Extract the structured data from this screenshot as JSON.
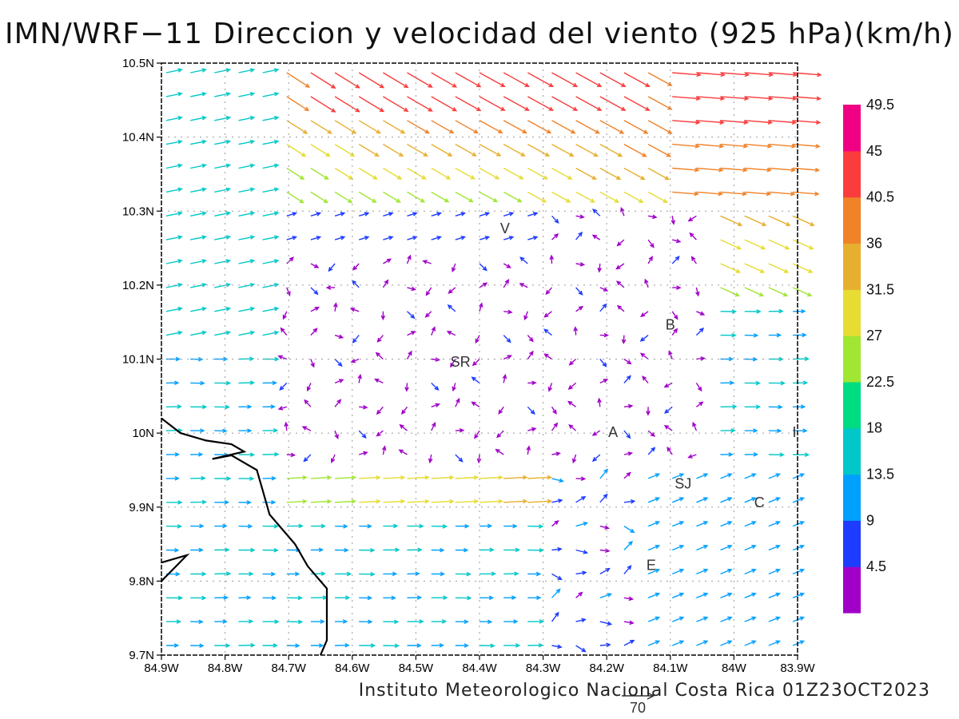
{
  "title": "IMN/WRF−11 Direccion y velocidad del viento (925 hPa)(km/h)",
  "credit": "Instituto Meteorologico Nacional Costa Rica 01Z23OCT2023",
  "reference_vector": {
    "value": "70"
  },
  "map": {
    "x_ticks": [
      "84.9W",
      "84.8W",
      "84.7W",
      "84.6W",
      "84.5W",
      "84.4W",
      "84.3W",
      "84.2W",
      "84.1W",
      "84W",
      "83.9W"
    ],
    "y_ticks": [
      "10.5N",
      "10.4N",
      "10.3N",
      "10.2N",
      "10.1N",
      "10N",
      "9.9N",
      "9.8N",
      "9.7N"
    ],
    "lon_range": [
      -84.9,
      -83.9
    ],
    "lat_range": [
      9.7,
      10.5
    ],
    "grid": true
  },
  "station_labels": [
    {
      "text": "V",
      "lon": -84.36,
      "lat": 10.27
    },
    {
      "text": "SR",
      "lon": -84.43,
      "lat": 10.09
    },
    {
      "text": "B",
      "lon": -84.1,
      "lat": 10.14
    },
    {
      "text": "A",
      "lon": -84.19,
      "lat": 9.995
    },
    {
      "text": "I",
      "lon": -83.905,
      "lat": 9.995
    },
    {
      "text": "SJ",
      "lon": -84.08,
      "lat": 9.925
    },
    {
      "text": "C",
      "lon": -83.96,
      "lat": 9.9
    },
    {
      "text": "E",
      "lon": -84.13,
      "lat": 9.815
    }
  ],
  "colorbar": {
    "labels": [
      "4.5",
      "9",
      "13.5",
      "18",
      "22.5",
      "27",
      "31.5",
      "36",
      "40.5",
      "45",
      "49.5"
    ],
    "colors": [
      "#a000c8",
      "#1e3cff",
      "#00a0ff",
      "#00c8c8",
      "#00dc82",
      "#a0e632",
      "#e6dc32",
      "#e6af2d",
      "#f08228",
      "#fa3c3c",
      "#f00082"
    ]
  },
  "coastline": [
    [
      -84.9,
      10.02
    ],
    [
      -84.87,
      10.0
    ],
    [
      -84.83,
      9.99
    ],
    [
      -84.79,
      9.985
    ],
    [
      -84.77,
      9.975
    ],
    [
      -84.82,
      9.965
    ],
    [
      -84.79,
      9.97
    ],
    [
      -84.77,
      9.96
    ],
    [
      -84.75,
      9.95
    ],
    [
      -84.74,
      9.92
    ],
    [
      -84.73,
      9.89
    ],
    [
      -84.71,
      9.87
    ],
    [
      -84.69,
      9.85
    ],
    [
      -84.67,
      9.82
    ],
    [
      -84.65,
      9.8
    ],
    [
      -84.64,
      9.79
    ],
    [
      -84.64,
      9.72
    ],
    [
      -84.65,
      9.7
    ]
  ],
  "coastline_w": [
    [
      -84.9,
      9.825
    ],
    [
      -84.86,
      9.835
    ],
    [
      -84.9,
      9.8
    ]
  ]
}
